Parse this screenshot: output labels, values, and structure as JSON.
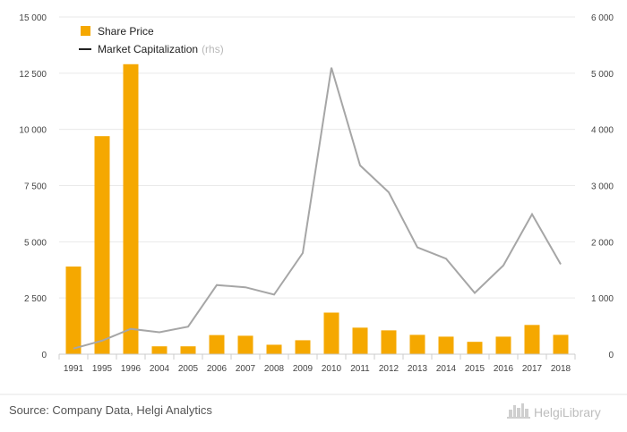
{
  "chart_data": {
    "type": "bar",
    "categories": [
      "1991",
      "1995",
      "1996",
      "2004",
      "2005",
      "2006",
      "2007",
      "2008",
      "2009",
      "2010",
      "2011",
      "2012",
      "2013",
      "2014",
      "2015",
      "2016",
      "2017",
      "2018"
    ],
    "series": [
      {
        "name": "Share Price",
        "type": "bar",
        "axis": "left",
        "color": "#f5a800",
        "values": [
          3900,
          9700,
          12900,
          350,
          350,
          850,
          820,
          420,
          620,
          1850,
          1180,
          1060,
          860,
          780,
          550,
          780,
          1300,
          860
        ]
      },
      {
        "name": "Market Capitalization",
        "name_suffix": "(rhs)",
        "type": "line",
        "axis": "right",
        "color": "#a6a6a6",
        "values": [
          100,
          240,
          450,
          390,
          490,
          1230,
          1190,
          1060,
          1800,
          5100,
          3360,
          2880,
          1900,
          1700,
          1090,
          1580,
          2490,
          1600
        ]
      }
    ],
    "yleft": {
      "min": 0,
      "max": 15000,
      "ticks": [
        0,
        2500,
        5000,
        7500,
        10000,
        12500,
        15000
      ],
      "tick_labels": [
        "0",
        "2 500",
        "5 000",
        "7 500",
        "10 000",
        "12 500",
        "15 000"
      ]
    },
    "yright": {
      "min": 0,
      "max": 6000,
      "ticks": [
        0,
        1000,
        2000,
        3000,
        4000,
        5000,
        6000
      ],
      "tick_labels": [
        "0",
        "1 000",
        "2 000",
        "3 000",
        "4 000",
        "5 000",
        "6 000"
      ]
    },
    "grid": true,
    "legend": "top-left"
  },
  "footer": {
    "source": "Source: Company Data, Helgi Analytics",
    "logo_text": "HelgiLibrary"
  }
}
